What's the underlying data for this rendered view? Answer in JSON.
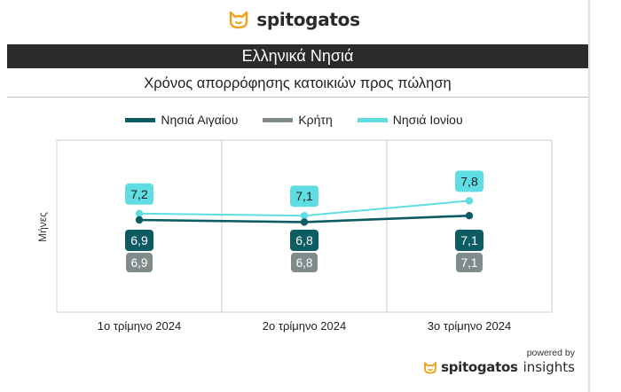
{
  "brand": {
    "name": "spitogatos",
    "logo_icon": "cat-icon",
    "color": "#f0a21b"
  },
  "header": {
    "title": "Ελληνικά Νησιά",
    "subtitle": "Χρόνος απορρόφησης κατοικιών προς πώληση"
  },
  "footer": {
    "powered_by": "powered by",
    "brand": "spitogatos",
    "product": "insights"
  },
  "chart_data": {
    "type": "line",
    "categories": [
      "1ο τρίμηνο 2024",
      "2ο τρίμηνο 2024",
      "3ο τρίμηνο 2024"
    ],
    "ylabel": "Μήνες",
    "series": [
      {
        "name": "Νησιά Αιγαίου",
        "color": "#0d5c63",
        "values": [
          6.9,
          6.8,
          7.1
        ],
        "labels": [
          "6,9",
          "6,8",
          "7,1"
        ]
      },
      {
        "name": "Κρήτη",
        "color": "#7f8c8b",
        "values": [
          6.9,
          6.8,
          7.1
        ],
        "labels": [
          "6,9",
          "6,8",
          "7,1"
        ]
      },
      {
        "name": "Νησιά Ιονίου",
        "color": "#5fdde3",
        "values": [
          7.2,
          7.1,
          7.8
        ],
        "labels": [
          "7,2",
          "7,1",
          "7,8"
        ]
      }
    ]
  }
}
